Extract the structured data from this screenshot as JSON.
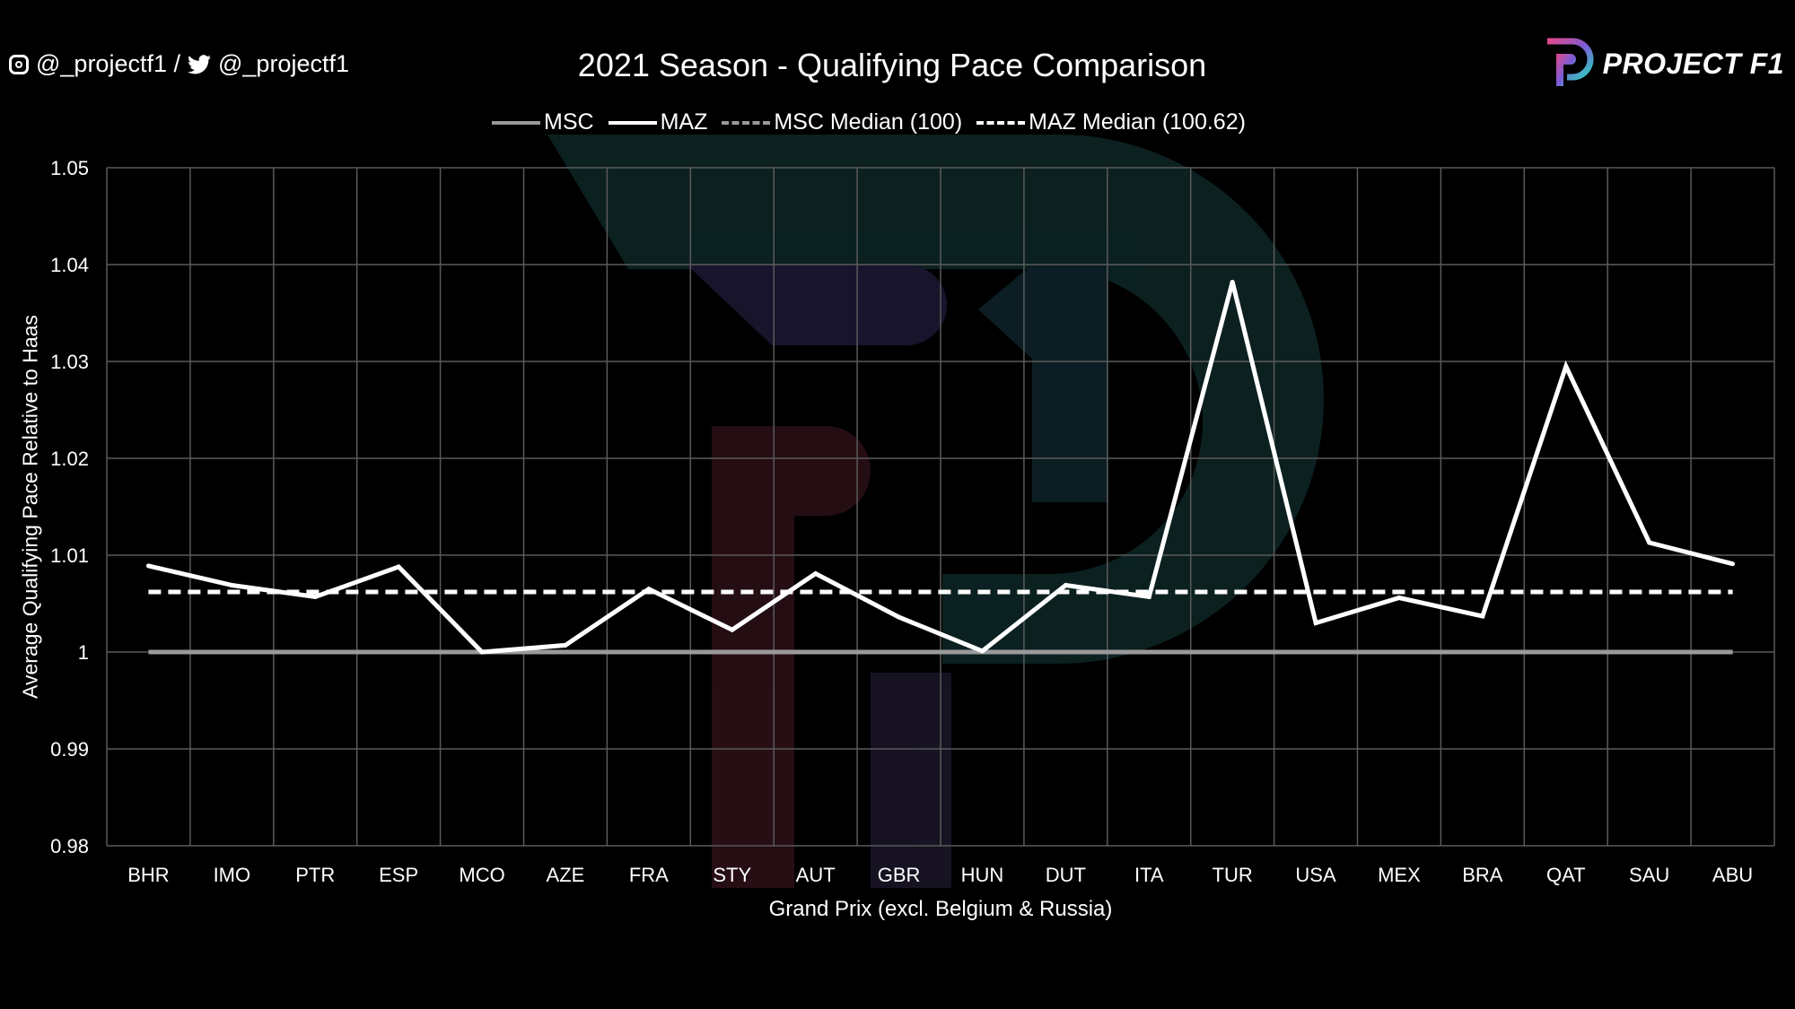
{
  "header": {
    "instagram_handle": "@_projectf1 /",
    "twitter_handle": "@_projectf1",
    "logo_text": "PROJECT F1"
  },
  "colors": {
    "background": "#000000",
    "msc": "#9a9a9a",
    "maz": "#ffffff",
    "grid": "#5a5a5a"
  },
  "chart_data": {
    "type": "line",
    "title": "2021 Season - Qualifying Pace Comparison",
    "xlabel": "Grand Prix (excl. Belgium & Russia)",
    "ylabel": "Average Qualifying Pace Relative to Haas",
    "ylim": [
      0.98,
      1.05
    ],
    "yticks": [
      "0.98",
      "0.99",
      "1",
      "1.01",
      "1.02",
      "1.03",
      "1.04",
      "1.05"
    ],
    "ytick_values": [
      0.98,
      0.99,
      1.0,
      1.01,
      1.02,
      1.03,
      1.04,
      1.05
    ],
    "grid": true,
    "legend_position": "top-center",
    "categories": [
      "BHR",
      "IMO",
      "PTR",
      "ESP",
      "MCO",
      "AZE",
      "FRA",
      "STY",
      "AUT",
      "GBR",
      "HUN",
      "DUT",
      "ITA",
      "TUR",
      "USA",
      "MEX",
      "BRA",
      "QAT",
      "SAU",
      "ABU"
    ],
    "series": [
      {
        "name": "MSC",
        "style": "solid",
        "color": "#9a9a9a",
        "values": [
          1,
          1,
          1,
          1,
          1,
          1,
          1,
          1,
          1,
          1,
          1,
          1,
          1,
          1,
          1,
          1,
          1,
          1,
          1,
          1
        ]
      },
      {
        "name": "MAZ",
        "style": "solid",
        "color": "#ffffff",
        "values": [
          1.0089,
          1.0069,
          1.0057,
          1.0088,
          1.0,
          1.0007,
          1.0065,
          1.0023,
          1.0081,
          1.0036,
          1.0001,
          1.0069,
          1.0057,
          1.0382,
          1.003,
          1.0056,
          1.0037,
          1.0295,
          1.0113,
          1.0091
        ]
      },
      {
        "name": "MSC Median (100)",
        "style": "dashed",
        "color": "#9a9a9a",
        "constant": 1.0
      },
      {
        "name": "MAZ Median (100.62)",
        "style": "dashed",
        "color": "#ffffff",
        "constant": 1.0062
      }
    ]
  }
}
